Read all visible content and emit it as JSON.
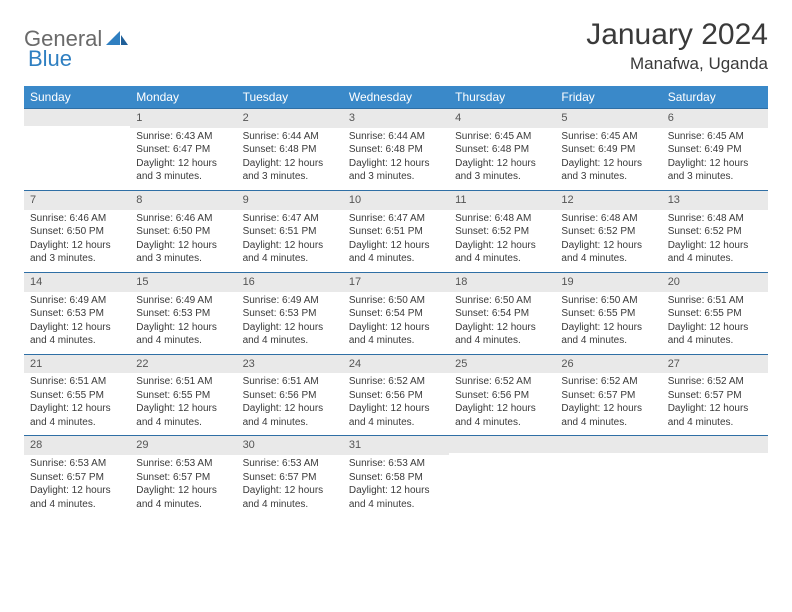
{
  "logo": {
    "general": "General",
    "blue": "Blue"
  },
  "title": "January 2024",
  "location": "Manafwa, Uganda",
  "colors": {
    "header_bg": "#3a89c9",
    "header_text": "#ffffff",
    "daynum_bg": "#e9e9e9",
    "daynum_border": "#2f6fa5",
    "body_text": "#3a3a3a",
    "logo_gray": "#6a6a6a",
    "logo_blue": "#2f7fc1"
  },
  "weekdays": [
    "Sunday",
    "Monday",
    "Tuesday",
    "Wednesday",
    "Thursday",
    "Friday",
    "Saturday"
  ],
  "weeks": [
    [
      {
        "day": "",
        "sunrise": "",
        "sunset": "",
        "daylight": ""
      },
      {
        "day": "1",
        "sunrise": "Sunrise: 6:43 AM",
        "sunset": "Sunset: 6:47 PM",
        "daylight": "Daylight: 12 hours and 3 minutes."
      },
      {
        "day": "2",
        "sunrise": "Sunrise: 6:44 AM",
        "sunset": "Sunset: 6:48 PM",
        "daylight": "Daylight: 12 hours and 3 minutes."
      },
      {
        "day": "3",
        "sunrise": "Sunrise: 6:44 AM",
        "sunset": "Sunset: 6:48 PM",
        "daylight": "Daylight: 12 hours and 3 minutes."
      },
      {
        "day": "4",
        "sunrise": "Sunrise: 6:45 AM",
        "sunset": "Sunset: 6:48 PM",
        "daylight": "Daylight: 12 hours and 3 minutes."
      },
      {
        "day": "5",
        "sunrise": "Sunrise: 6:45 AM",
        "sunset": "Sunset: 6:49 PM",
        "daylight": "Daylight: 12 hours and 3 minutes."
      },
      {
        "day": "6",
        "sunrise": "Sunrise: 6:45 AM",
        "sunset": "Sunset: 6:49 PM",
        "daylight": "Daylight: 12 hours and 3 minutes."
      }
    ],
    [
      {
        "day": "7",
        "sunrise": "Sunrise: 6:46 AM",
        "sunset": "Sunset: 6:50 PM",
        "daylight": "Daylight: 12 hours and 3 minutes."
      },
      {
        "day": "8",
        "sunrise": "Sunrise: 6:46 AM",
        "sunset": "Sunset: 6:50 PM",
        "daylight": "Daylight: 12 hours and 3 minutes."
      },
      {
        "day": "9",
        "sunrise": "Sunrise: 6:47 AM",
        "sunset": "Sunset: 6:51 PM",
        "daylight": "Daylight: 12 hours and 4 minutes."
      },
      {
        "day": "10",
        "sunrise": "Sunrise: 6:47 AM",
        "sunset": "Sunset: 6:51 PM",
        "daylight": "Daylight: 12 hours and 4 minutes."
      },
      {
        "day": "11",
        "sunrise": "Sunrise: 6:48 AM",
        "sunset": "Sunset: 6:52 PM",
        "daylight": "Daylight: 12 hours and 4 minutes."
      },
      {
        "day": "12",
        "sunrise": "Sunrise: 6:48 AM",
        "sunset": "Sunset: 6:52 PM",
        "daylight": "Daylight: 12 hours and 4 minutes."
      },
      {
        "day": "13",
        "sunrise": "Sunrise: 6:48 AM",
        "sunset": "Sunset: 6:52 PM",
        "daylight": "Daylight: 12 hours and 4 minutes."
      }
    ],
    [
      {
        "day": "14",
        "sunrise": "Sunrise: 6:49 AM",
        "sunset": "Sunset: 6:53 PM",
        "daylight": "Daylight: 12 hours and 4 minutes."
      },
      {
        "day": "15",
        "sunrise": "Sunrise: 6:49 AM",
        "sunset": "Sunset: 6:53 PM",
        "daylight": "Daylight: 12 hours and 4 minutes."
      },
      {
        "day": "16",
        "sunrise": "Sunrise: 6:49 AM",
        "sunset": "Sunset: 6:53 PM",
        "daylight": "Daylight: 12 hours and 4 minutes."
      },
      {
        "day": "17",
        "sunrise": "Sunrise: 6:50 AM",
        "sunset": "Sunset: 6:54 PM",
        "daylight": "Daylight: 12 hours and 4 minutes."
      },
      {
        "day": "18",
        "sunrise": "Sunrise: 6:50 AM",
        "sunset": "Sunset: 6:54 PM",
        "daylight": "Daylight: 12 hours and 4 minutes."
      },
      {
        "day": "19",
        "sunrise": "Sunrise: 6:50 AM",
        "sunset": "Sunset: 6:55 PM",
        "daylight": "Daylight: 12 hours and 4 minutes."
      },
      {
        "day": "20",
        "sunrise": "Sunrise: 6:51 AM",
        "sunset": "Sunset: 6:55 PM",
        "daylight": "Daylight: 12 hours and 4 minutes."
      }
    ],
    [
      {
        "day": "21",
        "sunrise": "Sunrise: 6:51 AM",
        "sunset": "Sunset: 6:55 PM",
        "daylight": "Daylight: 12 hours and 4 minutes."
      },
      {
        "day": "22",
        "sunrise": "Sunrise: 6:51 AM",
        "sunset": "Sunset: 6:55 PM",
        "daylight": "Daylight: 12 hours and 4 minutes."
      },
      {
        "day": "23",
        "sunrise": "Sunrise: 6:51 AM",
        "sunset": "Sunset: 6:56 PM",
        "daylight": "Daylight: 12 hours and 4 minutes."
      },
      {
        "day": "24",
        "sunrise": "Sunrise: 6:52 AM",
        "sunset": "Sunset: 6:56 PM",
        "daylight": "Daylight: 12 hours and 4 minutes."
      },
      {
        "day": "25",
        "sunrise": "Sunrise: 6:52 AM",
        "sunset": "Sunset: 6:56 PM",
        "daylight": "Daylight: 12 hours and 4 minutes."
      },
      {
        "day": "26",
        "sunrise": "Sunrise: 6:52 AM",
        "sunset": "Sunset: 6:57 PM",
        "daylight": "Daylight: 12 hours and 4 minutes."
      },
      {
        "day": "27",
        "sunrise": "Sunrise: 6:52 AM",
        "sunset": "Sunset: 6:57 PM",
        "daylight": "Daylight: 12 hours and 4 minutes."
      }
    ],
    [
      {
        "day": "28",
        "sunrise": "Sunrise: 6:53 AM",
        "sunset": "Sunset: 6:57 PM",
        "daylight": "Daylight: 12 hours and 4 minutes."
      },
      {
        "day": "29",
        "sunrise": "Sunrise: 6:53 AM",
        "sunset": "Sunset: 6:57 PM",
        "daylight": "Daylight: 12 hours and 4 minutes."
      },
      {
        "day": "30",
        "sunrise": "Sunrise: 6:53 AM",
        "sunset": "Sunset: 6:57 PM",
        "daylight": "Daylight: 12 hours and 4 minutes."
      },
      {
        "day": "31",
        "sunrise": "Sunrise: 6:53 AM",
        "sunset": "Sunset: 6:58 PM",
        "daylight": "Daylight: 12 hours and 4 minutes."
      },
      {
        "day": "",
        "sunrise": "",
        "sunset": "",
        "daylight": ""
      },
      {
        "day": "",
        "sunrise": "",
        "sunset": "",
        "daylight": ""
      },
      {
        "day": "",
        "sunrise": "",
        "sunset": "",
        "daylight": ""
      }
    ]
  ]
}
